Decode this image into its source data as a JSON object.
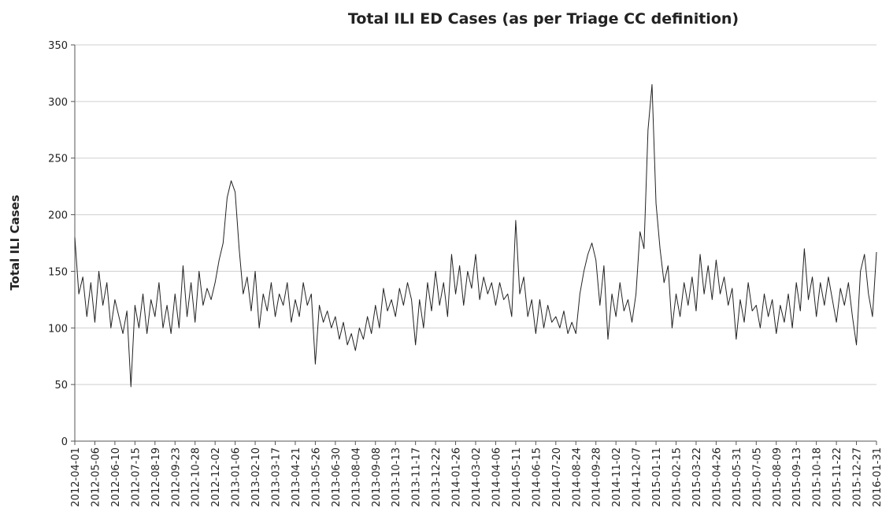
{
  "chart_data": {
    "type": "line",
    "title": "Total ILI ED Cases (as per Triage CC definition)",
    "y_label": "Total ILI Cases",
    "color": "#222222",
    "grid": true,
    "ylim": [
      0,
      350
    ],
    "yticks": [
      0,
      50,
      100,
      150,
      200,
      250,
      300,
      350
    ],
    "xlim": [
      "2012-04-01",
      "2016-01-31"
    ],
    "xticks": [
      "2012-04-01",
      "2012-05-06",
      "2012-06-10",
      "2012-07-15",
      "2012-08-19",
      "2012-09-23",
      "2012-10-28",
      "2012-12-02",
      "2013-01-06",
      "2013-02-10",
      "2013-03-17",
      "2013-04-21",
      "2013-05-26",
      "2013-06-30",
      "2013-08-04",
      "2013-09-08",
      "2013-10-13",
      "2013-11-17",
      "2013-12-22",
      "2014-01-26",
      "2014-03-02",
      "2014-04-06",
      "2014-05-11",
      "2014-06-15",
      "2014-07-20",
      "2014-08-24",
      "2014-09-28",
      "2014-11-02",
      "2014-12-07",
      "2015-01-11",
      "2015-02-15",
      "2015-03-22",
      "2015-04-26",
      "2015-05-31",
      "2015-07-05",
      "2015-08-09",
      "2015-09-13",
      "2015-10-18",
      "2015-11-22",
      "2015-12-27",
      "2016-01-31"
    ],
    "x": [
      "2012-04-01",
      "2012-04-08",
      "2012-04-15",
      "2012-04-22",
      "2012-04-29",
      "2012-05-06",
      "2012-05-13",
      "2012-05-20",
      "2012-05-27",
      "2012-06-03",
      "2012-06-10",
      "2012-06-17",
      "2012-06-24",
      "2012-07-01",
      "2012-07-08",
      "2012-07-15",
      "2012-07-22",
      "2012-07-29",
      "2012-08-05",
      "2012-08-12",
      "2012-08-19",
      "2012-08-26",
      "2012-09-02",
      "2012-09-09",
      "2012-09-16",
      "2012-09-23",
      "2012-09-30",
      "2012-10-07",
      "2012-10-14",
      "2012-10-21",
      "2012-10-28",
      "2012-11-04",
      "2012-11-11",
      "2012-11-18",
      "2012-11-25",
      "2012-12-02",
      "2012-12-09",
      "2012-12-16",
      "2012-12-23",
      "2012-12-30",
      "2013-01-06",
      "2013-01-13",
      "2013-01-20",
      "2013-01-27",
      "2013-02-03",
      "2013-02-10",
      "2013-02-17",
      "2013-02-24",
      "2013-03-03",
      "2013-03-10",
      "2013-03-17",
      "2013-03-24",
      "2013-03-31",
      "2013-04-07",
      "2013-04-14",
      "2013-04-21",
      "2013-04-28",
      "2013-05-05",
      "2013-05-12",
      "2013-05-19",
      "2013-05-26",
      "2013-06-02",
      "2013-06-09",
      "2013-06-16",
      "2013-06-23",
      "2013-06-30",
      "2013-07-07",
      "2013-07-14",
      "2013-07-21",
      "2013-07-28",
      "2013-08-04",
      "2013-08-11",
      "2013-08-18",
      "2013-08-25",
      "2013-09-01",
      "2013-09-08",
      "2013-09-15",
      "2013-09-22",
      "2013-09-29",
      "2013-10-06",
      "2013-10-13",
      "2013-10-20",
      "2013-10-27",
      "2013-11-03",
      "2013-11-10",
      "2013-11-17",
      "2013-11-24",
      "2013-12-01",
      "2013-12-08",
      "2013-12-15",
      "2013-12-22",
      "2013-12-29",
      "2014-01-05",
      "2014-01-12",
      "2014-01-19",
      "2014-01-26",
      "2014-02-02",
      "2014-02-09",
      "2014-02-16",
      "2014-02-23",
      "2014-03-02",
      "2014-03-09",
      "2014-03-16",
      "2014-03-23",
      "2014-03-30",
      "2014-04-06",
      "2014-04-13",
      "2014-04-20",
      "2014-04-27",
      "2014-05-04",
      "2014-05-11",
      "2014-05-18",
      "2014-05-25",
      "2014-06-01",
      "2014-06-08",
      "2014-06-15",
      "2014-06-22",
      "2014-06-29",
      "2014-07-06",
      "2014-07-13",
      "2014-07-20",
      "2014-07-27",
      "2014-08-03",
      "2014-08-10",
      "2014-08-17",
      "2014-08-24",
      "2014-08-31",
      "2014-09-07",
      "2014-09-14",
      "2014-09-21",
      "2014-09-28",
      "2014-10-05",
      "2014-10-12",
      "2014-10-19",
      "2014-10-26",
      "2014-11-02",
      "2014-11-09",
      "2014-11-16",
      "2014-11-23",
      "2014-11-30",
      "2014-12-07",
      "2014-12-14",
      "2014-12-21",
      "2014-12-28",
      "2015-01-04",
      "2015-01-11",
      "2015-01-18",
      "2015-01-25",
      "2015-02-01",
      "2015-02-08",
      "2015-02-15",
      "2015-02-22",
      "2015-03-01",
      "2015-03-08",
      "2015-03-15",
      "2015-03-22",
      "2015-03-29",
      "2015-04-05",
      "2015-04-12",
      "2015-04-19",
      "2015-04-26",
      "2015-05-03",
      "2015-05-10",
      "2015-05-17",
      "2015-05-24",
      "2015-05-31",
      "2015-06-07",
      "2015-06-14",
      "2015-06-21",
      "2015-06-28",
      "2015-07-05",
      "2015-07-12",
      "2015-07-19",
      "2015-07-26",
      "2015-08-02",
      "2015-08-09",
      "2015-08-16",
      "2015-08-23",
      "2015-08-30",
      "2015-09-06",
      "2015-09-13",
      "2015-09-20",
      "2015-09-27",
      "2015-10-04",
      "2015-10-11",
      "2015-10-18",
      "2015-10-25",
      "2015-11-01",
      "2015-11-08",
      "2015-11-15",
      "2015-11-22",
      "2015-11-29",
      "2015-12-06",
      "2015-12-13",
      "2015-12-20",
      "2015-12-27",
      "2016-01-03",
      "2016-01-10",
      "2016-01-17",
      "2016-01-24",
      "2016-01-31"
    ],
    "values": [
      180,
      130,
      145,
      110,
      140,
      105,
      150,
      120,
      140,
      100,
      125,
      110,
      95,
      115,
      48,
      120,
      100,
      130,
      95,
      125,
      110,
      140,
      100,
      120,
      95,
      130,
      100,
      155,
      110,
      140,
      105,
      150,
      120,
      135,
      125,
      140,
      160,
      175,
      215,
      230,
      220,
      170,
      130,
      145,
      115,
      150,
      100,
      130,
      115,
      140,
      110,
      130,
      120,
      140,
      105,
      125,
      110,
      140,
      120,
      130,
      68,
      120,
      105,
      115,
      100,
      110,
      90,
      105,
      85,
      95,
      80,
      100,
      90,
      110,
      95,
      120,
      100,
      135,
      115,
      125,
      110,
      135,
      120,
      140,
      125,
      85,
      125,
      100,
      140,
      115,
      150,
      120,
      140,
      110,
      165,
      130,
      155,
      120,
      150,
      135,
      165,
      125,
      145,
      130,
      140,
      120,
      140,
      125,
      130,
      110,
      195,
      130,
      145,
      110,
      125,
      95,
      125,
      100,
      120,
      105,
      110,
      100,
      115,
      95,
      105,
      95,
      130,
      150,
      165,
      175,
      160,
      120,
      155,
      90,
      130,
      110,
      140,
      115,
      125,
      105,
      130,
      185,
      170,
      275,
      315,
      210,
      170,
      140,
      155,
      100,
      130,
      110,
      140,
      120,
      145,
      115,
      165,
      130,
      155,
      125,
      160,
      130,
      145,
      120,
      135,
      90,
      125,
      105,
      140,
      115,
      120,
      100,
      130,
      110,
      125,
      95,
      120,
      105,
      130,
      100,
      140,
      115,
      170,
      125,
      145,
      110,
      140,
      120,
      145,
      125,
      105,
      135,
      120,
      140,
      110,
      85,
      150,
      165,
      130,
      110,
      167
    ]
  }
}
